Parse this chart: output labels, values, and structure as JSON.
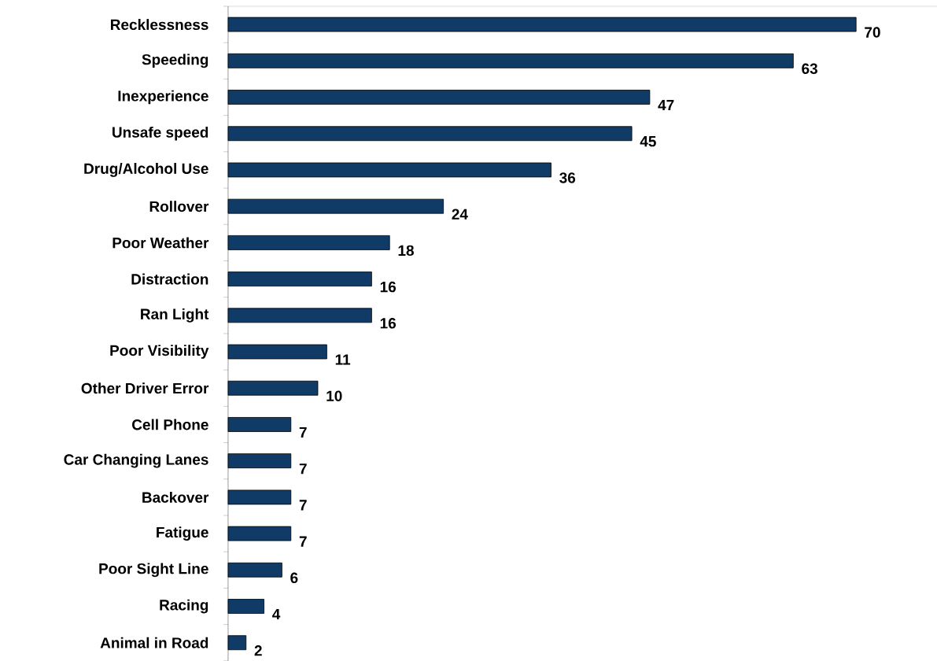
{
  "chart_data": {
    "type": "bar",
    "orientation": "horizontal",
    "categories": [
      "Recklessness",
      "Speeding",
      "Inexperience",
      "Unsafe speed",
      "Drug/Alcohol Use",
      "Rollover",
      "Poor Weather",
      "Distraction",
      "Ran Light",
      "Poor Visibility",
      "Other Driver  Error",
      "Cell Phone",
      "Car Changing Lanes",
      "Backover",
      "Fatigue",
      "Poor Sight Line",
      "Racing",
      "Animal in Road"
    ],
    "values": [
      70,
      63,
      47,
      45,
      36,
      24,
      18,
      16,
      16,
      11,
      10,
      7,
      7,
      7,
      7,
      6,
      4,
      2
    ],
    "color": "#0f3b66",
    "data_labels": true
  }
}
